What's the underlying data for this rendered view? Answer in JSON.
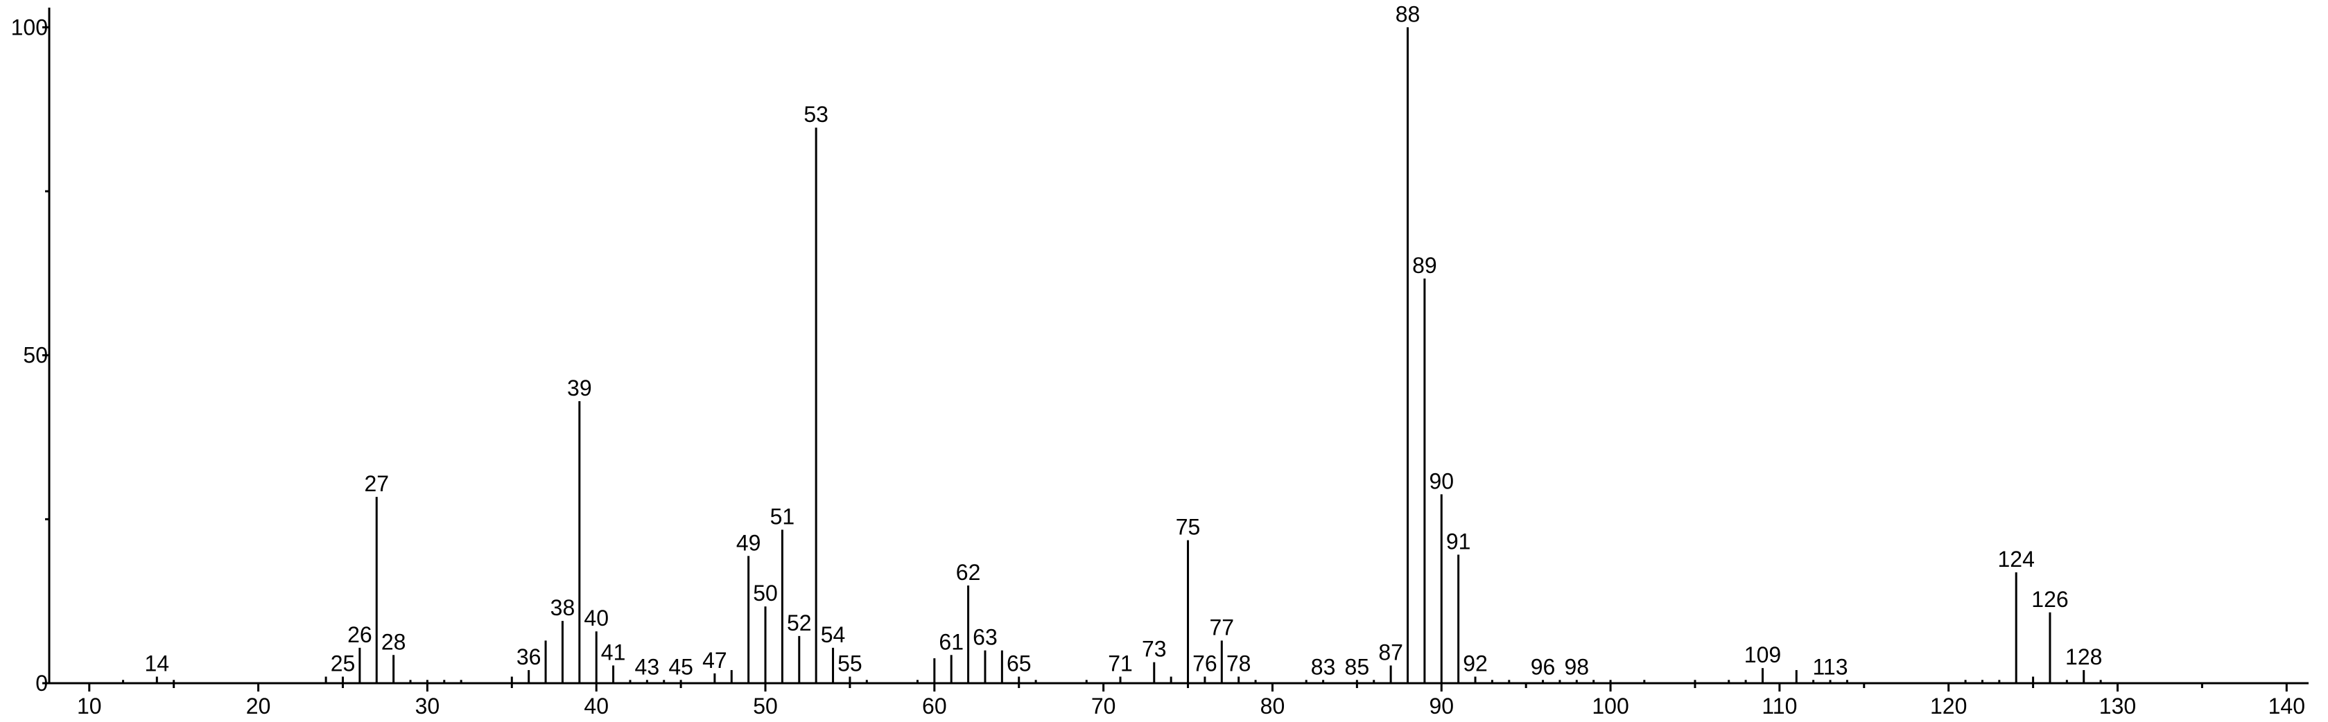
{
  "chart_data": {
    "type": "stem",
    "color": "#000000",
    "x": [
      12,
      14,
      15,
      24,
      25,
      26,
      27,
      28,
      29,
      30,
      31,
      32,
      35,
      36,
      37,
      38,
      39,
      40,
      41,
      42,
      43,
      44,
      45,
      47,
      48,
      49,
      50,
      51,
      52,
      53,
      54,
      55,
      56,
      59,
      60,
      61,
      62,
      63,
      64,
      65,
      66,
      69,
      71,
      73,
      74,
      75,
      76,
      77,
      78,
      79,
      82,
      83,
      85,
      86,
      87,
      88,
      89,
      90,
      91,
      92,
      93,
      94,
      96,
      97,
      98,
      99,
      100,
      102,
      105,
      107,
      108,
      109,
      111,
      112,
      113,
      114,
      121,
      122,
      123,
      124,
      125,
      126,
      127,
      128,
      129
    ],
    "values": [
      0.5,
      1,
      0.5,
      1,
      1,
      5.4,
      28.4,
      4.3,
      0.5,
      0.5,
      0.5,
      0.5,
      1,
      2,
      6.5,
      9.5,
      43,
      7.9,
      2.7,
      0.5,
      0.5,
      0.5,
      0.5,
      1.5,
      2,
      19.4,
      11.7,
      23.4,
      7.2,
      84.7,
      5.4,
      1,
      0.5,
      0.5,
      3.8,
      4.3,
      14.9,
      5,
      5,
      1,
      0.5,
      0.5,
      1,
      3.2,
      1,
      21.8,
      1,
      6.5,
      1,
      0.5,
      0.5,
      0.5,
      0.5,
      0.5,
      2.7,
      100,
      61.7,
      28.8,
      19.6,
      1,
      0.5,
      0.5,
      0.5,
      0.5,
      0.5,
      0.5,
      0.5,
      0.5,
      0.5,
      0.5,
      0.5,
      2.3,
      2,
      0.5,
      0.5,
      0.5,
      0.5,
      0.5,
      0.5,
      16.9,
      1,
      10.8,
      0.5,
      2,
      0.5
    ],
    "labeled": [
      false,
      true,
      false,
      false,
      true,
      true,
      true,
      true,
      false,
      false,
      false,
      false,
      false,
      true,
      false,
      true,
      true,
      true,
      true,
      false,
      true,
      false,
      true,
      true,
      false,
      true,
      true,
      true,
      true,
      true,
      true,
      true,
      false,
      false,
      false,
      true,
      true,
      true,
      false,
      true,
      false,
      false,
      true,
      true,
      false,
      true,
      true,
      true,
      true,
      false,
      false,
      true,
      true,
      false,
      true,
      true,
      true,
      true,
      true,
      true,
      false,
      false,
      true,
      false,
      true,
      false,
      false,
      false,
      false,
      false,
      false,
      true,
      false,
      false,
      true,
      false,
      false,
      false,
      false,
      true,
      false,
      true,
      false,
      true,
      false
    ],
    "xlim": [
      7.63,
      141.3
    ],
    "ylim": [
      0,
      103
    ],
    "xticks": [
      10,
      20,
      30,
      40,
      50,
      60,
      70,
      80,
      90,
      100,
      110,
      120,
      130,
      140
    ],
    "xminorticks": [
      15,
      25,
      35,
      45,
      55,
      65,
      75,
      85,
      95,
      105,
      115,
      125,
      135
    ],
    "yticks": [
      0,
      50,
      100
    ],
    "yminorticks": [
      25,
      75
    ]
  }
}
